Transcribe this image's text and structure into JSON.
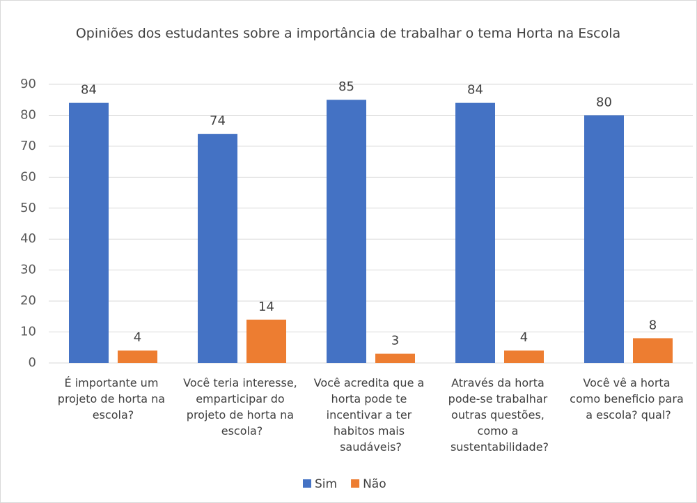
{
  "chart_data": {
    "type": "bar",
    "title": "Opiniões dos estudantes sobre a importância de trabalhar o tema Horta na Escola",
    "categories": [
      "É importante um projeto de horta na escola?",
      "Você teria interesse, emparticipar do projeto de horta na escola?",
      "Você acredita que a horta pode te incentivar a ter habitos mais saudáveis?",
      "Através da horta pode-se trabalhar outras questões, como a sustentabilidade?",
      "Você vê a horta como beneficio para a escola? qual?"
    ],
    "series": [
      {
        "name": "Sim",
        "color": "#4472c4",
        "values": [
          84,
          74,
          85,
          84,
          80
        ]
      },
      {
        "name": "Não",
        "color": "#ed7d31",
        "values": [
          4,
          14,
          3,
          4,
          8
        ]
      }
    ],
    "ylim": [
      0,
      90
    ],
    "yticks": [
      0,
      10,
      20,
      30,
      40,
      50,
      60,
      70,
      80,
      90
    ],
    "grid": true,
    "legend": "bottom"
  }
}
